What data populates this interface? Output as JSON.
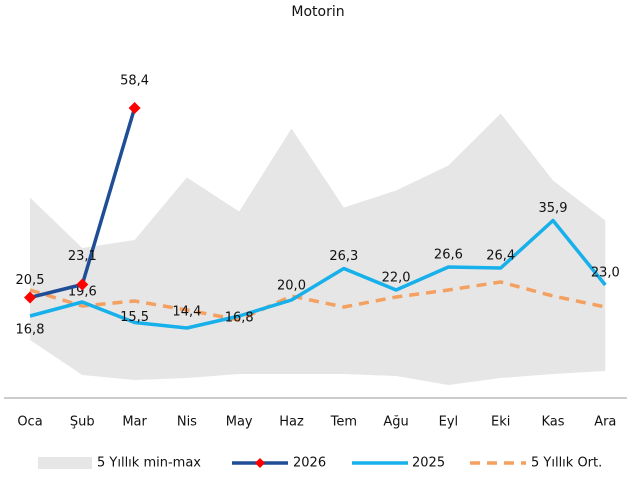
{
  "chart_data": {
    "type": "line",
    "title": "Motorin",
    "categories": [
      "Oca",
      "Şub",
      "Mar",
      "Nis",
      "May",
      "Haz",
      "Tem",
      "Ağu",
      "Eyl",
      "Eki",
      "Kas",
      "Ara"
    ],
    "ylim": [
      0,
      74
    ],
    "band": {
      "name": "5 Yıllık min-max",
      "color": "#e6e6e6",
      "max": [
        40.5,
        30.4,
        32,
        44.5,
        37.7,
        54.3,
        38.5,
        41.9,
        46.9,
        57.3,
        43.9,
        35.9
      ],
      "min": [
        12,
        5,
        4,
        4.4,
        5.2,
        5.2,
        5.2,
        4.8,
        3,
        4.4,
        5.2,
        5.8
      ]
    },
    "series": [
      {
        "name": "2026",
        "color": "#1f4e96",
        "marker_color": "#ff0000",
        "values": [
          20.5,
          23.1,
          58.4,
          null,
          null,
          null,
          null,
          null,
          null,
          null,
          null,
          null
        ],
        "value_labels": [
          "20,5",
          "23,1",
          "58,4",
          null,
          null,
          null,
          null,
          null,
          null,
          null,
          null,
          null
        ]
      },
      {
        "name": "2025",
        "color": "#17b0ea",
        "values": [
          16.8,
          19.6,
          15.5,
          14.4,
          16.8,
          20.0,
          26.3,
          22.0,
          26.6,
          26.4,
          35.9,
          23.0
        ],
        "value_labels": [
          "16,8",
          "19,6",
          "15,5",
          "14,4",
          "16,8",
          "20,0",
          "26,3",
          "22,0",
          "26,6",
          "26,4",
          "35,9",
          "23,0"
        ]
      },
      {
        "name": "5 Yıllık Ort.",
        "color": "#f4a060",
        "dashed": true,
        "values": [
          22,
          18.8,
          19.8,
          18,
          16,
          20.8,
          18.6,
          20.6,
          22,
          23.6,
          20.8,
          18.6
        ]
      }
    ]
  }
}
